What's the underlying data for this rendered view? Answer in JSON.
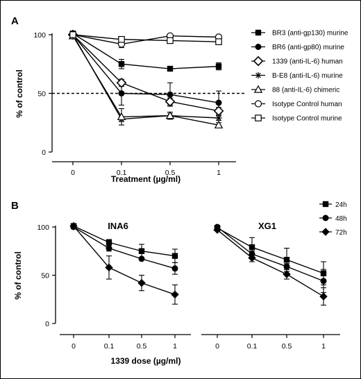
{
  "panels": {
    "A": {
      "letter": "A",
      "ylabel": "% of control",
      "xlabel": "Treatment (µg/ml)"
    },
    "B": {
      "letter": "B",
      "ylabel": "% of control",
      "xlabel": "1339 dose (µg/ml)",
      "subtitles": [
        "INA6",
        "XG1"
      ]
    }
  },
  "chart_data": [
    {
      "type": "line",
      "panel": "A",
      "categories": [
        "0",
        "0.1",
        "0.5",
        "1"
      ],
      "ylim": [
        0,
        100
      ],
      "yticks": [
        "0",
        "50",
        "100"
      ],
      "reference_line": 50,
      "legend_position": "right",
      "series": [
        {
          "name": "BR3 (anti-gp130) murine",
          "marker": "square-filled",
          "values": [
            101,
            75,
            71,
            73
          ],
          "errors": [
            2,
            4,
            1,
            3
          ]
        },
        {
          "name": "BR6 (anti-gp80) murine",
          "marker": "circle-filled",
          "values": [
            100,
            50,
            49,
            42
          ],
          "errors": [
            2,
            10,
            10,
            10
          ]
        },
        {
          "name": "1339 (anti-IL-6) human",
          "marker": "diamond-open",
          "values": [
            100,
            59,
            43,
            35
          ],
          "errors": [
            2,
            3,
            3,
            3
          ]
        },
        {
          "name": "B-E8 (anti-IL-6) murine",
          "marker": "star",
          "values": [
            100,
            28,
            31,
            29
          ],
          "errors": [
            2,
            2,
            3,
            2
          ]
        },
        {
          "name": "88 (anti-IL-6) chimeric",
          "marker": "triangle-open",
          "values": [
            99,
            30,
            31,
            23
          ],
          "errors": [
            2,
            7,
            3,
            2
          ]
        },
        {
          "name": "Isotype Control human",
          "marker": "circle-open",
          "values": [
            100,
            92,
            99,
            98
          ],
          "errors": [
            2,
            3,
            1,
            1
          ]
        },
        {
          "name": "Isotype Control murine",
          "marker": "square-open",
          "values": [
            100,
            96,
            95,
            94
          ],
          "errors": [
            2,
            2,
            1,
            1
          ]
        }
      ]
    },
    {
      "type": "line",
      "panel": "B",
      "title": "INA6",
      "categories": [
        "0",
        "0.1",
        "0.5",
        "1"
      ],
      "ylim": [
        0,
        100
      ],
      "yticks": [
        "0",
        "50",
        "100"
      ],
      "legend_position": "top-right",
      "series": [
        {
          "name": "24h",
          "marker": "square-filled",
          "values": [
            101,
            84,
            75,
            70
          ],
          "errors": [
            1,
            3,
            7,
            7
          ]
        },
        {
          "name": "48h",
          "marker": "circle-filled",
          "values": [
            100,
            78,
            67,
            57
          ],
          "errors": [
            1,
            3,
            1,
            6
          ]
        },
        {
          "name": "72h",
          "marker": "diamond-filled",
          "values": [
            101,
            58,
            42,
            30
          ],
          "errors": [
            1,
            12,
            8,
            10
          ]
        }
      ]
    },
    {
      "type": "line",
      "panel": "B",
      "title": "XG1",
      "categories": [
        "0",
        "0.1",
        "0.5",
        "1"
      ],
      "ylim": [
        0,
        100
      ],
      "series": [
        {
          "name": "24h",
          "marker": "square-filled",
          "values": [
            99,
            79,
            66,
            52
          ],
          "errors": [
            1,
            10,
            12,
            12
          ]
        },
        {
          "name": "48h",
          "marker": "circle-filled",
          "values": [
            100,
            72,
            59,
            44
          ],
          "errors": [
            1,
            3,
            3,
            12
          ]
        },
        {
          "name": "72h",
          "marker": "diamond-filled",
          "values": [
            97,
            68,
            51,
            28
          ],
          "errors": [
            1,
            4,
            5,
            9
          ]
        }
      ]
    }
  ]
}
